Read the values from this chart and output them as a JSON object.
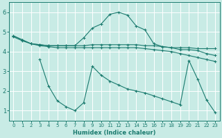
{
  "xlabel": "Humidex (Indice chaleur)",
  "x_ticks": [
    0,
    1,
    2,
    3,
    4,
    5,
    6,
    7,
    8,
    9,
    10,
    11,
    12,
    13,
    14,
    15,
    16,
    17,
    18,
    19,
    20,
    21,
    22,
    23
  ],
  "xlim": [
    -0.5,
    23.5
  ],
  "ylim": [
    0.5,
    6.5
  ],
  "yticks": [
    1,
    2,
    3,
    4,
    5,
    6
  ],
  "bg_color": "#c8ebe5",
  "grid_color": "#ffffff",
  "line_color": "#1a7a6e",
  "series": {
    "line1": {
      "x": [
        0,
        1,
        2,
        3,
        4,
        5,
        6,
        7,
        8,
        9,
        10,
        11,
        12,
        13,
        14,
        15,
        16,
        17,
        18,
        19,
        20,
        21,
        22,
        23
      ],
      "y": [
        4.8,
        4.6,
        4.4,
        4.35,
        4.3,
        4.3,
        4.3,
        4.3,
        4.7,
        5.2,
        5.4,
        5.9,
        6.0,
        5.85,
        5.3,
        5.1,
        4.4,
        4.25,
        4.2,
        4.2,
        4.2,
        4.15,
        4.15,
        4.15
      ]
    },
    "line2": {
      "x": [
        0,
        1,
        2,
        3,
        4,
        5,
        6,
        7,
        8,
        9,
        10,
        11,
        12,
        13,
        14,
        15,
        16,
        17,
        18,
        19,
        20,
        21,
        22,
        23
      ],
      "y": [
        4.8,
        4.6,
        4.4,
        4.35,
        4.3,
        4.3,
        4.3,
        4.3,
        4.3,
        4.35,
        4.35,
        4.35,
        4.35,
        4.35,
        4.35,
        4.3,
        4.3,
        4.25,
        4.2,
        4.1,
        4.1,
        4.05,
        3.9,
        3.8
      ]
    },
    "line3": {
      "x": [
        0,
        1,
        2,
        3,
        4,
        5,
        6,
        7,
        8,
        9,
        10,
        11,
        12,
        13,
        14,
        15,
        16,
        17,
        18,
        19,
        20,
        21,
        22,
        23
      ],
      "y": [
        4.75,
        4.55,
        4.4,
        4.3,
        4.25,
        4.2,
        4.2,
        4.2,
        4.2,
        4.2,
        4.2,
        4.2,
        4.2,
        4.2,
        4.2,
        4.15,
        4.1,
        4.05,
        4.0,
        3.9,
        3.8,
        3.7,
        3.6,
        3.5
      ]
    },
    "line4": {
      "x": [
        3,
        4,
        5,
        6,
        7,
        8,
        9,
        10,
        11,
        12,
        13,
        14,
        15,
        16,
        17,
        18,
        19,
        20,
        21,
        22,
        23
      ],
      "y": [
        3.6,
        2.25,
        1.5,
        1.2,
        1.0,
        1.4,
        3.25,
        2.8,
        2.5,
        2.3,
        2.1,
        2.0,
        1.9,
        1.75,
        1.6,
        1.45,
        1.3,
        3.55,
        2.6,
        1.55,
        0.9
      ]
    }
  }
}
